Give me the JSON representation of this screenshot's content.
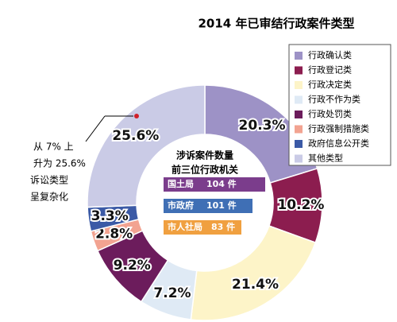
{
  "chart_data": {
    "type": "donut",
    "title": "2014 年已审结行政案件类型",
    "categories": [
      "行政确认类",
      "行政登记类",
      "行政决定类",
      "行政不作为类",
      "行政处罚类",
      "行政强制措施类",
      "政府信息公开类",
      "其他类型"
    ],
    "values": [
      20.3,
      10.2,
      21.4,
      7.2,
      9.2,
      2.8,
      3.3,
      25.6
    ],
    "value_labels": [
      "20.3%",
      "10.2%",
      "21.4%",
      "7.2%",
      "9.2%",
      "2.8%",
      "3.3%",
      "25.6%"
    ],
    "colors": [
      "#9d92c6",
      "#8c1d4f",
      "#fdf4c8",
      "#dfeaf5",
      "#6c1c5c",
      "#f2a391",
      "#3b5aa6",
      "#cacbe6"
    ],
    "legend": "top-right",
    "center": {
      "heading": [
        "涉诉案件数量",
        "前三位行政机关"
      ],
      "items": [
        {
          "name": "国土局",
          "count": "104 件",
          "color": "#7b3d8c"
        },
        {
          "name": "市政府",
          "count": "101 件",
          "color": "#3f6fb5"
        },
        {
          "name": "市人社局",
          "count": "83 件",
          "color": "#f0a040"
        }
      ]
    },
    "annotation": [
      "从 7% 上",
      "升为 25.6%",
      "诉讼类型",
      "呈复杂化"
    ]
  }
}
